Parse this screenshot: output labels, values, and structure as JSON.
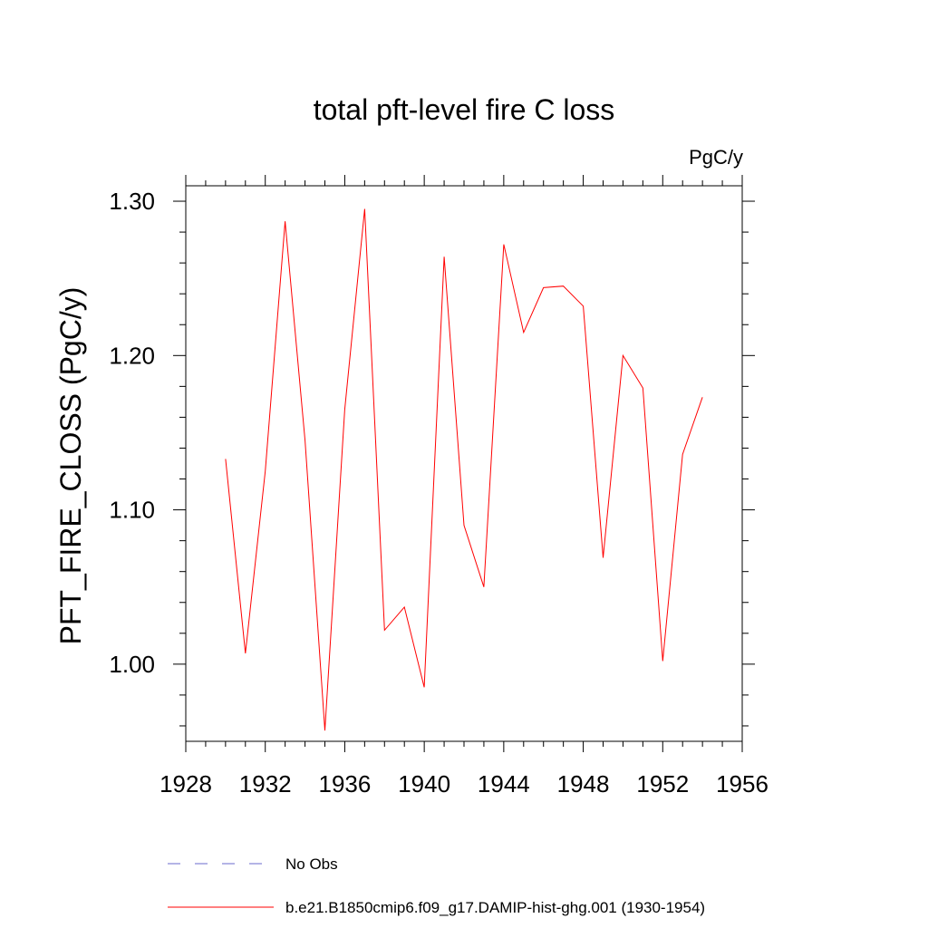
{
  "chart_data": {
    "type": "line",
    "title": "total pft-level fire C loss",
    "units": "PgC/y",
    "ylabel": "PFT_FIRE_CLOSS  (PgC/y)",
    "xlabel": "",
    "xlim": [
      1928,
      1956
    ],
    "ylim": [
      0.95,
      1.31
    ],
    "x_ticks": [
      1928,
      1932,
      1936,
      1940,
      1944,
      1948,
      1952,
      1956
    ],
    "y_ticks": [
      1.0,
      1.1,
      1.2,
      1.3
    ],
    "y_tick_labels": [
      "1.00",
      "1.10",
      "1.20",
      "1.30"
    ],
    "grid": false,
    "legend_position": "bottom",
    "series": [
      {
        "name": "No Obs",
        "style": "dashed",
        "color": "#6a6acd",
        "x": [],
        "values": []
      },
      {
        "name": "b.e21.B1850cmip6.f09_g17.DAMIP-hist-ghg.001 (1930-1954)",
        "style": "solid",
        "color": "#ff0000",
        "x": [
          1930,
          1931,
          1932,
          1933,
          1934,
          1935,
          1936,
          1937,
          1938,
          1939,
          1940,
          1941,
          1942,
          1943,
          1944,
          1945,
          1946,
          1947,
          1948,
          1949,
          1950,
          1951,
          1952,
          1953,
          1954
        ],
        "values": [
          1.133,
          1.007,
          1.125,
          1.287,
          1.145,
          0.957,
          1.165,
          1.295,
          1.022,
          1.037,
          0.985,
          1.264,
          1.09,
          1.05,
          1.272,
          1.215,
          1.244,
          1.245,
          1.232,
          1.069,
          1.2,
          1.179,
          1.002,
          1.136,
          1.173
        ]
      }
    ]
  }
}
